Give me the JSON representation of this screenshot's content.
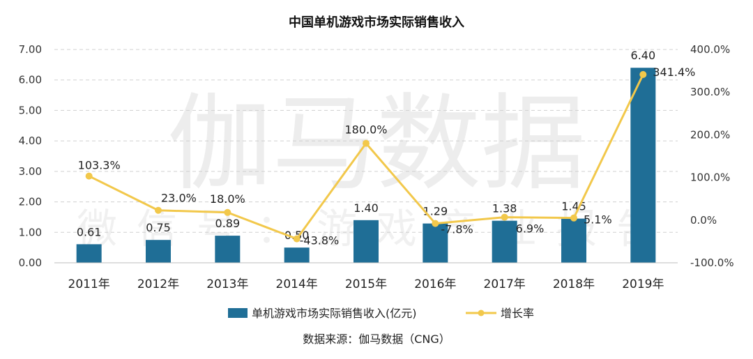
{
  "chart_data": {
    "type": "bar+line",
    "title": "中国单机游戏市场实际销售收入",
    "categories": [
      "2011年",
      "2012年",
      "2013年",
      "2014年",
      "2015年",
      "2016年",
      "2017年",
      "2018年",
      "2019年"
    ],
    "series": [
      {
        "name": "单机游戏市场实际销售收入(亿元)",
        "type": "bar",
        "axis": "left",
        "values": [
          0.61,
          0.75,
          0.89,
          0.5,
          1.4,
          1.29,
          1.38,
          1.45,
          6.4
        ],
        "labels": [
          "0.61",
          "0.75",
          "0.89",
          "0.50",
          "1.40",
          "1.29",
          "1.38",
          "1.45",
          "6.40"
        ],
        "color": "#1f6e96"
      },
      {
        "name": "增长率",
        "type": "line",
        "axis": "right",
        "values": [
          103.3,
          23.0,
          18.0,
          -43.8,
          180.0,
          -7.8,
          6.9,
          5.1,
          341.4
        ],
        "labels": [
          "103.3%",
          "23.0%",
          "18.0%",
          "-43.8%",
          "180.0%",
          "-7.8%",
          "6.9%",
          "5.1%",
          "341.4%"
        ],
        "color": "#f2c84b"
      }
    ],
    "left_axis": {
      "range": [
        0,
        7
      ],
      "ticks": [
        "0.00",
        "1.00",
        "2.00",
        "3.00",
        "4.00",
        "5.00",
        "6.00",
        "7.00"
      ]
    },
    "right_axis": {
      "range": [
        -100,
        400
      ],
      "ticks": [
        "-100.0%",
        "0.0%",
        "100.0%",
        "200.0%",
        "300.0%",
        "400.0%"
      ]
    },
    "grid": true,
    "legend_position": "bottom"
  },
  "watermark": {
    "main": "伽马数据",
    "sub": "微信号：游戏产业报告"
  },
  "source_text": "数据来源：伽马数据（CNG）"
}
